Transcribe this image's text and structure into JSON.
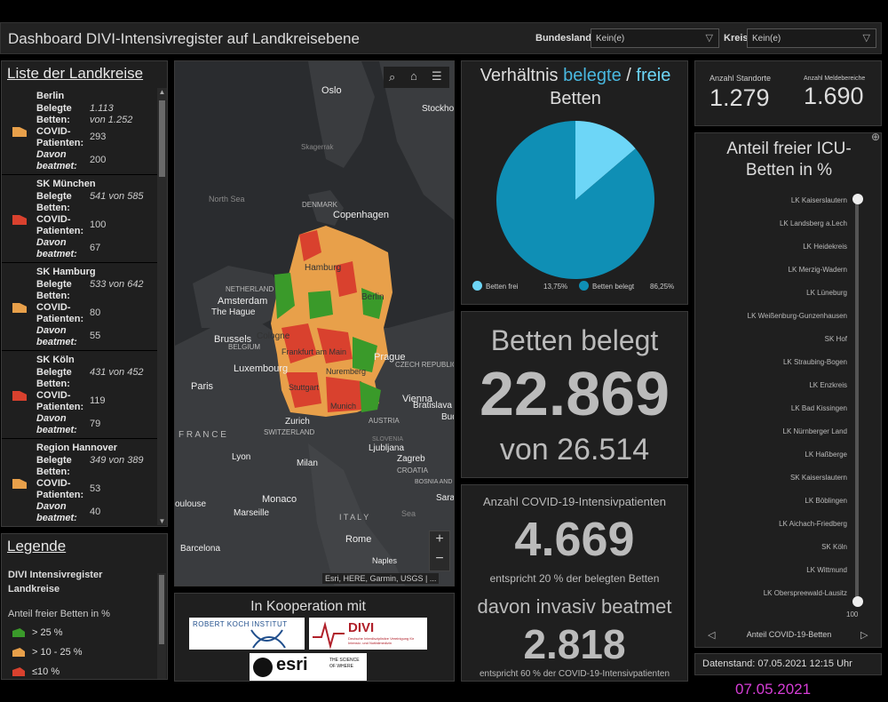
{
  "header": {
    "title": "Dashboard DIVI-Intensivregister auf Landkreisebene",
    "bundesland_label": "Bundesland",
    "bundesland_value": "Kein(e)",
    "kreis_label": "Kreis",
    "kreis_value": "Kein(e)"
  },
  "list": {
    "title": "Liste der Landkreise",
    "items": [
      {
        "name": "Berlin",
        "belegt_label": "Belegte Betten:",
        "belegt": "1.113",
        "von": "von 1.252",
        "covid_label": "COVID-Patienten:",
        "covid": "293",
        "beatmet_label": "Davon beatmet:",
        "beatmet": "200",
        "color": "#e8a04a"
      },
      {
        "name": "SK München",
        "belegt_label": "Belegte Betten:",
        "belegt": "541 von 585",
        "von": "",
        "covid_label": "COVID-Patienten:",
        "covid": "100",
        "beatmet_label": "Davon beatmet:",
        "beatmet": "67",
        "color": "#d9412e"
      },
      {
        "name": "SK Hamburg",
        "belegt_label": "Belegte Betten:",
        "belegt": "533 von 642",
        "von": "",
        "covid_label": "COVID-Patienten:",
        "covid": "80",
        "beatmet_label": "Davon beatmet:",
        "beatmet": "55",
        "color": "#e8a04a"
      },
      {
        "name": "SK Köln",
        "belegt_label": "Belegte Betten:",
        "belegt": "431 von 452",
        "von": "",
        "covid_label": "COVID-Patienten:",
        "covid": "119",
        "beatmet_label": "Davon beatmet:",
        "beatmet": "79",
        "color": "#d9412e"
      },
      {
        "name": "Region Hannover",
        "belegt_label": "Belegte Betten:",
        "belegt": "349 von 389",
        "von": "",
        "covid_label": "COVID-Patienten:",
        "covid": "53",
        "beatmet_label": "Davon beatmet:",
        "beatmet": "40",
        "color": "#e8a04a"
      }
    ]
  },
  "legend": {
    "title": "Legende",
    "layer": "DIVI Intensivregister Landkreise",
    "subtitle": "Anteil freier Betten in %",
    "items": [
      {
        "label": "> 25 %",
        "color": "#3a9a2a"
      },
      {
        "label": "> 10 - 25 %",
        "color": "#e8a04a"
      },
      {
        "label": "≤10 %",
        "color": "#d9412e"
      }
    ]
  },
  "map": {
    "attribution": "Esri, HERE, Garmin, USGS | ...",
    "zoom_in": "+",
    "zoom_out": "−",
    "labels": {
      "oslo": "Oslo",
      "stockholm": "Stockho",
      "skagerrak": "Skagerrak",
      "north_sea": "North Sea",
      "denmark": "DENMARK",
      "copenhagen": "Copenhagen",
      "netherlands": "NETHERLAND",
      "amsterdam": "Amsterdam",
      "hague": "The Hague",
      "belgium": "BELGIUM",
      "brussels": "Brussels",
      "luxembourg": "Luxembourg",
      "paris": "Paris",
      "france": "F R A N C E",
      "hamburg": "Hamburg",
      "berlin": "Berlin",
      "cologne": "Cologne",
      "frankfurt": "Frankfurt am Main",
      "nuremberg": "Nuremberg",
      "stuttgart": "Stuttgart",
      "munich": "Munich",
      "prague": "Prague",
      "czech": "CZECH REPUBLIC",
      "vienna": "Vienna",
      "bratislava": "Bratislava",
      "bud": "Bud",
      "austria": "AUSTRIA",
      "zurich": "Zurich",
      "switzerland": "SWITZERLAND",
      "lyon": "Lyon",
      "milan": "Milan",
      "ljubljana": "Ljubljana",
      "zagreb": "Zagreb",
      "croatia": "CROATIA",
      "slovenia": "SLOVENIA",
      "bosnia": "BOSNIA AND HERZEGOVINA",
      "sarajevo": "Saraje",
      "monaco": "Monaco",
      "marseille": "Marseille",
      "toulouse": "oulouse",
      "italy": "I T A L Y",
      "rome": "Rome",
      "naples": "Naples",
      "barcelona": "Barcelona",
      "sea": "Sea"
    }
  },
  "cooperation": {
    "title": "In Kooperation mit",
    "rki": "ROBERT KOCH INSTITUT",
    "divi": "DIVI",
    "divi_sub": "Deutsche Interdisziplinäre Vereinigung für Intensiv- und Notfallmedizin",
    "esri": "esri",
    "esri_tag": "THE SCIENCE OF WHERE"
  },
  "ratio": {
    "title_a": "Verhältnis",
    "title_b": "belegte",
    "title_sep": "/",
    "title_c": "freie",
    "title_d": "Betten",
    "color_frei": "#6dd6f7",
    "color_belegt": "#0f8fb5"
  },
  "chart_data": {
    "type": "pie",
    "slices": [
      {
        "label": "Betten frei",
        "value": 13.75,
        "display": "13,75%"
      },
      {
        "label": "Betten belegt",
        "value": 86.25,
        "display": "86,25%"
      }
    ]
  },
  "beds": {
    "title": "Betten belegt",
    "value": "22.869",
    "total": "von 26.514"
  },
  "covid": {
    "title": "Anzahl COVID-19-Intensivpatienten",
    "value": "4.669",
    "note": "entspricht 20 % der belegten Betten",
    "invasive_title": "davon invasiv beatmet",
    "invasive_value": "2.818",
    "invasive_note": "entspricht 60 % der COVID-19-Intensivpatienten"
  },
  "standorte": {
    "label": "Anzahl Standorte",
    "value": "1.279"
  },
  "meldebereiche": {
    "label": "Anzahl Meldebereiche",
    "value": "1.690"
  },
  "icu": {
    "title": "Anteil freier ICU-Betten in %",
    "items": [
      "LK Kaiserslautern",
      "LK Landsberg a.Lech",
      "LK Heidekreis",
      "LK Merzig-Wadern",
      "LK Lüneburg",
      "LK Weißenburg-Gunzenhausen",
      "SK Hof",
      "LK Straubing-Bogen",
      "LK Enzkreis",
      "LK Bad Kissingen",
      "LK Nürnberger Land",
      "LK Haßberge",
      "SK Kaiserslautern",
      "LK Böblingen",
      "LK Aichach-Friedberg",
      "SK Köln",
      "LK Wittmund",
      "LK Oberspreewald-Lausitz"
    ],
    "axis_max": "100",
    "footer": "Anteil COVID-19-Betten"
  },
  "datenstand": "Datenstand: 07.05.2021 12:15 Uhr",
  "date_stamp": "07.05.2021"
}
